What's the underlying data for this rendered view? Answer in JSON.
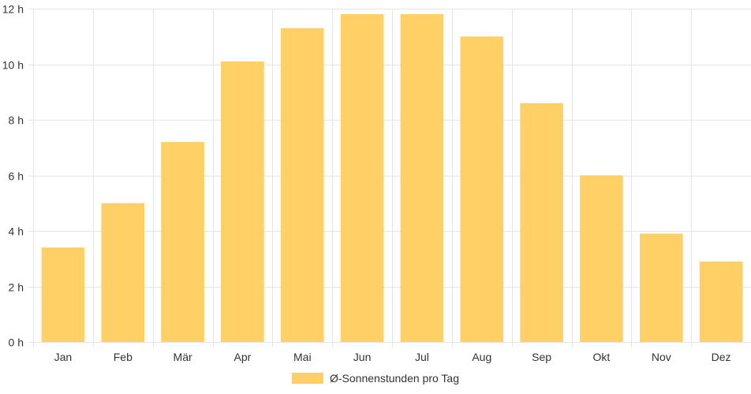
{
  "chart_data": {
    "type": "bar",
    "categories": [
      "Jan",
      "Feb",
      "Mär",
      "Apr",
      "Mai",
      "Jun",
      "Jul",
      "Aug",
      "Sep",
      "Okt",
      "Nov",
      "Dez"
    ],
    "series": [
      {
        "name": "Ø-Sonnenstunden pro Tag",
        "values": [
          3.4,
          5.0,
          7.2,
          10.1,
          11.3,
          11.8,
          11.8,
          11.0,
          8.6,
          6.0,
          3.9,
          2.9
        ],
        "color": "#fed066"
      }
    ],
    "y_ticks": [
      "0 h",
      "2 h",
      "4 h",
      "6 h",
      "8 h",
      "10 h",
      "12 h"
    ],
    "ylim": [
      0,
      12
    ],
    "grid": true,
    "legend_position": "bottom",
    "colors": {
      "bar": "#fed066",
      "grid": "#e5e5e5",
      "text": "#333333"
    }
  }
}
